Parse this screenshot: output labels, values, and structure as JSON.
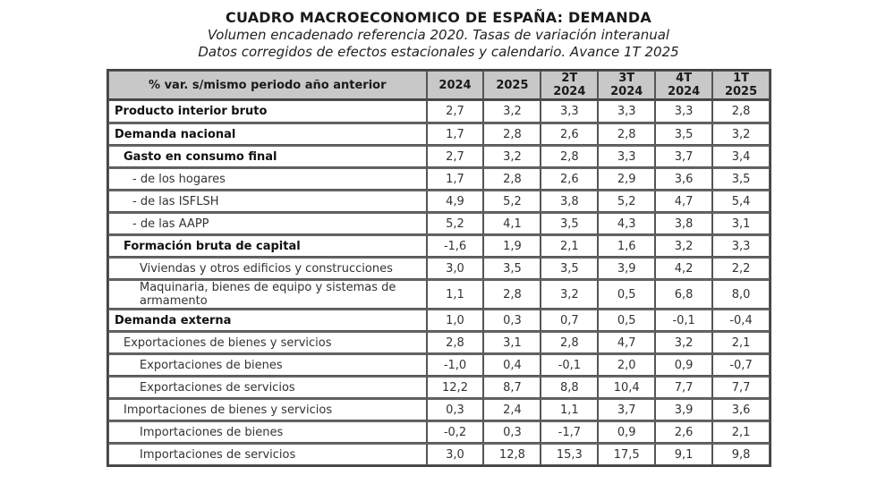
{
  "header": {
    "title": "CUADRO MACROECONOMICO DE ESPAÑA: DEMANDA",
    "subtitle1": "Volumen encadenado referencia 2020. Tasas de variación interanual",
    "subtitle2": "Datos corregidos de efectos estacionales y calendario. Avance 1T 2025"
  },
  "table": {
    "columns": [
      "% var. s/mismo periodo año anterior",
      "2024",
      "2025",
      "2T 2024",
      "3T 2024",
      "4T 2024",
      "1T 2025"
    ],
    "rows": [
      {
        "label": "Producto interior bruto",
        "bold": true,
        "indent": 0,
        "values": [
          "2,7",
          "3,2",
          "3,3",
          "3,3",
          "3,3",
          "2,8"
        ]
      },
      {
        "label": "Demanda nacional",
        "bold": true,
        "indent": 0,
        "values": [
          "1,7",
          "2,8",
          "2,6",
          "2,8",
          "3,5",
          "3,2"
        ]
      },
      {
        "label": "Gasto en consumo final",
        "bold": true,
        "indent": 1,
        "values": [
          "2,7",
          "3,2",
          "2,8",
          "3,3",
          "3,7",
          "3,4"
        ]
      },
      {
        "label": "- de los hogares",
        "bold": false,
        "indent": 2,
        "values": [
          "1,7",
          "2,8",
          "2,6",
          "2,9",
          "3,6",
          "3,5"
        ]
      },
      {
        "label": "- de las ISFLSH",
        "bold": false,
        "indent": 2,
        "values": [
          "4,9",
          "5,2",
          "3,8",
          "5,2",
          "4,7",
          "5,4"
        ]
      },
      {
        "label": "- de las AAPP",
        "bold": false,
        "indent": 2,
        "values": [
          "5,2",
          "4,1",
          "3,5",
          "4,3",
          "3,8",
          "3,1"
        ]
      },
      {
        "label": "Formación bruta de capital",
        "bold": true,
        "indent": 1,
        "values": [
          "-1,6",
          "1,9",
          "2,1",
          "1,6",
          "3,2",
          "3,3"
        ]
      },
      {
        "label": "Viviendas y otros edificios y construcciones",
        "bold": false,
        "indent": 3,
        "values": [
          "3,0",
          "3,5",
          "3,5",
          "3,9",
          "4,2",
          "2,2"
        ]
      },
      {
        "label": "Maquinaria, bienes de equipo y sistemas de armamento",
        "bold": false,
        "indent": 3,
        "values": [
          "1,1",
          "2,8",
          "3,2",
          "0,5",
          "6,8",
          "8,0"
        ]
      },
      {
        "label": "Demanda externa",
        "bold": true,
        "indent": 0,
        "values": [
          "1,0",
          "0,3",
          "0,7",
          "0,5",
          "-0,1",
          "-0,4"
        ]
      },
      {
        "label": "Exportaciones de bienes y servicios",
        "bold": false,
        "indent": 1,
        "values": [
          "2,8",
          "3,1",
          "2,8",
          "4,7",
          "3,2",
          "2,1"
        ]
      },
      {
        "label": "Exportaciones de bienes",
        "bold": false,
        "indent": 3,
        "values": [
          "-1,0",
          "0,4",
          "-0,1",
          "2,0",
          "0,9",
          "-0,7"
        ]
      },
      {
        "label": "Exportaciones de servicios",
        "bold": false,
        "indent": 3,
        "values": [
          "12,2",
          "8,7",
          "8,8",
          "10,4",
          "7,7",
          "7,7"
        ]
      },
      {
        "label": "Importaciones de bienes y servicios",
        "bold": false,
        "indent": 1,
        "values": [
          "0,3",
          "2,4",
          "1,1",
          "3,7",
          "3,9",
          "3,6"
        ]
      },
      {
        "label": "Importaciones de bienes",
        "bold": false,
        "indent": 3,
        "values": [
          "-0,2",
          "0,3",
          "-1,7",
          "0,9",
          "2,6",
          "2,1"
        ]
      },
      {
        "label": "Importaciones de servicios",
        "bold": false,
        "indent": 3,
        "values": [
          "3,0",
          "12,8",
          "15,3",
          "17,5",
          "9,1",
          "9,8"
        ]
      }
    ]
  }
}
